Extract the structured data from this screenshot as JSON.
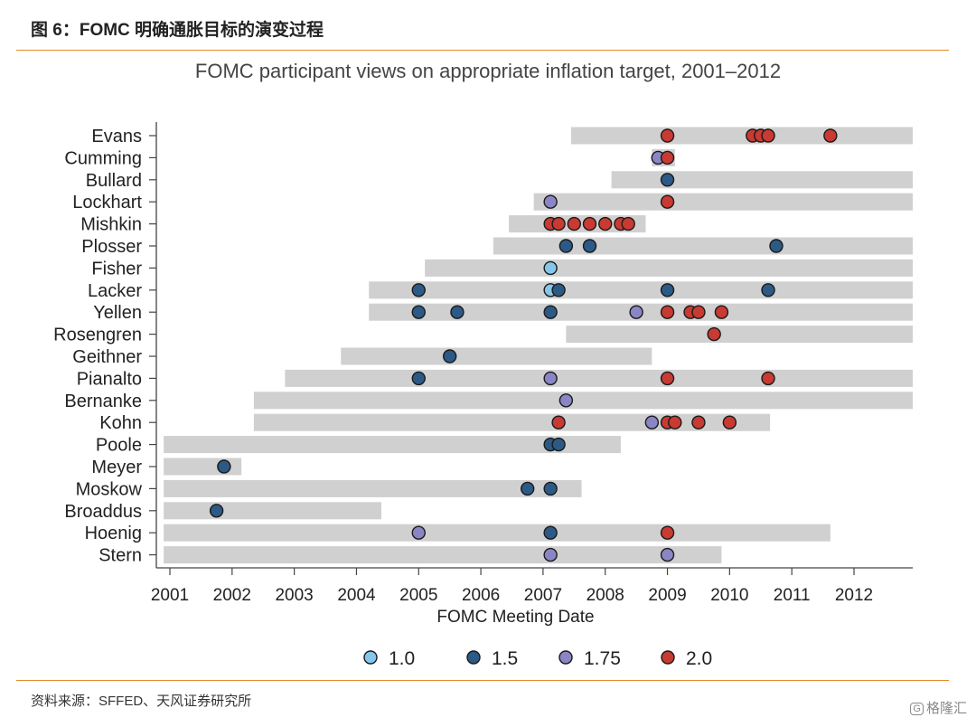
{
  "header": {
    "figure_title": "图 6：FOMC 明确通胀目标的演变过程"
  },
  "footer": {
    "source": "资料来源：SFFED、天风证券研究所",
    "watermark_badge": "G",
    "watermark_text": "格隆汇"
  },
  "colors": {
    "accent_rule": "#e38b2e",
    "bar": "#d0d0d0",
    "t1_0": "#85c7ea",
    "t1_5": "#2c5a86",
    "t1_75": "#8a86c6",
    "t2_0": "#c83a32"
  },
  "chart_data": {
    "type": "scatter",
    "title": "FOMC participant views on appropriate inflation target, 2001–2012",
    "xlabel": "FOMC Meeting Date",
    "ylabel": "",
    "xlim": [
      2000.9,
      2013.0
    ],
    "xticks": [
      2001,
      2002,
      2003,
      2004,
      2005,
      2006,
      2007,
      2008,
      2009,
      2010,
      2011,
      2012
    ],
    "grid": false,
    "legend_position": "bottom",
    "legend": [
      {
        "label": "1.0",
        "key": "t1_0"
      },
      {
        "label": "1.5",
        "key": "t1_5"
      },
      {
        "label": "1.75",
        "key": "t1_75"
      },
      {
        "label": "2.0",
        "key": "t2_0"
      }
    ],
    "participants": [
      {
        "name": "Evans",
        "tenure": [
          2007.45,
          2012.99
        ],
        "points": [
          [
            2009.0,
            "2.0"
          ],
          [
            2010.37,
            "2.0"
          ],
          [
            2010.5,
            "2.0"
          ],
          [
            2010.62,
            "2.0"
          ],
          [
            2011.62,
            "2.0"
          ]
        ]
      },
      {
        "name": "Cumming",
        "tenure": [
          2008.75,
          2009.12
        ],
        "points": [
          [
            2008.85,
            "1.75"
          ],
          [
            2009.0,
            "2.0"
          ]
        ]
      },
      {
        "name": "Bullard",
        "tenure": [
          2008.1,
          2012.99
        ],
        "points": [
          [
            2009.0,
            "1.5"
          ]
        ]
      },
      {
        "name": "Lockhart",
        "tenure": [
          2006.85,
          2012.99
        ],
        "points": [
          [
            2007.12,
            "1.75"
          ],
          [
            2009.0,
            "2.0"
          ]
        ]
      },
      {
        "name": "Mishkin",
        "tenure": [
          2006.45,
          2008.65
        ],
        "points": [
          [
            2007.12,
            "2.0"
          ],
          [
            2007.25,
            "2.0"
          ],
          [
            2007.5,
            "2.0"
          ],
          [
            2007.75,
            "2.0"
          ],
          [
            2008.0,
            "2.0"
          ],
          [
            2008.25,
            "2.0"
          ],
          [
            2008.37,
            "2.0"
          ]
        ]
      },
      {
        "name": "Plosser",
        "tenure": [
          2006.2,
          2012.99
        ],
        "points": [
          [
            2007.37,
            "1.5"
          ],
          [
            2007.75,
            "1.5"
          ],
          [
            2010.75,
            "1.5"
          ]
        ]
      },
      {
        "name": "Fisher",
        "tenure": [
          2005.1,
          2012.99
        ],
        "points": [
          [
            2007.12,
            "1.0"
          ]
        ]
      },
      {
        "name": "Lacker",
        "tenure": [
          2004.2,
          2012.99
        ],
        "points": [
          [
            2005.0,
            "1.5"
          ],
          [
            2007.12,
            "1.0"
          ],
          [
            2007.25,
            "1.5"
          ],
          [
            2009.0,
            "1.5"
          ],
          [
            2010.62,
            "1.5"
          ]
        ]
      },
      {
        "name": "Yellen",
        "tenure": [
          2004.2,
          2012.99
        ],
        "points": [
          [
            2005.0,
            "1.5"
          ],
          [
            2005.62,
            "1.5"
          ],
          [
            2007.12,
            "1.5"
          ],
          [
            2008.5,
            "1.75"
          ],
          [
            2009.0,
            "2.0"
          ],
          [
            2009.37,
            "2.0"
          ],
          [
            2009.5,
            "2.0"
          ],
          [
            2009.87,
            "2.0"
          ]
        ]
      },
      {
        "name": "Rosengren",
        "tenure": [
          2007.37,
          2012.99
        ],
        "points": [
          [
            2009.75,
            "2.0"
          ]
        ]
      },
      {
        "name": "Geithner",
        "tenure": [
          2003.75,
          2008.75
        ],
        "points": [
          [
            2005.5,
            "1.5"
          ]
        ]
      },
      {
        "name": "Pianalto",
        "tenure": [
          2002.85,
          2012.99
        ],
        "points": [
          [
            2005.0,
            "1.5"
          ],
          [
            2007.12,
            "1.75"
          ],
          [
            2009.0,
            "2.0"
          ],
          [
            2010.62,
            "2.0"
          ]
        ]
      },
      {
        "name": "Bernanke",
        "tenure": [
          2002.35,
          2012.99
        ],
        "points": [
          [
            2007.37,
            "1.75"
          ]
        ]
      },
      {
        "name": "Kohn",
        "tenure": [
          2002.35,
          2010.65
        ],
        "points": [
          [
            2007.25,
            "2.0"
          ],
          [
            2008.75,
            "1.75"
          ],
          [
            2009.0,
            "2.0"
          ],
          [
            2009.12,
            "2.0"
          ],
          [
            2009.5,
            "2.0"
          ],
          [
            2010.0,
            "2.0"
          ]
        ]
      },
      {
        "name": "Poole",
        "tenure": [
          2000.9,
          2008.25
        ],
        "points": [
          [
            2007.12,
            "1.5"
          ],
          [
            2007.25,
            "1.5"
          ]
        ]
      },
      {
        "name": "Meyer",
        "tenure": [
          2000.9,
          2002.15
        ],
        "points": [
          [
            2001.87,
            "1.5"
          ]
        ]
      },
      {
        "name": "Moskow",
        "tenure": [
          2000.9,
          2007.62
        ],
        "points": [
          [
            2006.75,
            "1.5"
          ],
          [
            2007.12,
            "1.5"
          ]
        ]
      },
      {
        "name": "Broaddus",
        "tenure": [
          2000.9,
          2004.4
        ],
        "points": [
          [
            2001.75,
            "1.5"
          ]
        ]
      },
      {
        "name": "Hoenig",
        "tenure": [
          2000.9,
          2011.62
        ],
        "points": [
          [
            2005.0,
            "1.75"
          ],
          [
            2007.12,
            "1.5"
          ],
          [
            2009.0,
            "2.0"
          ]
        ]
      },
      {
        "name": "Stern",
        "tenure": [
          2000.9,
          2009.87
        ],
        "points": [
          [
            2007.12,
            "1.75"
          ],
          [
            2009.0,
            "1.75"
          ]
        ]
      }
    ]
  }
}
